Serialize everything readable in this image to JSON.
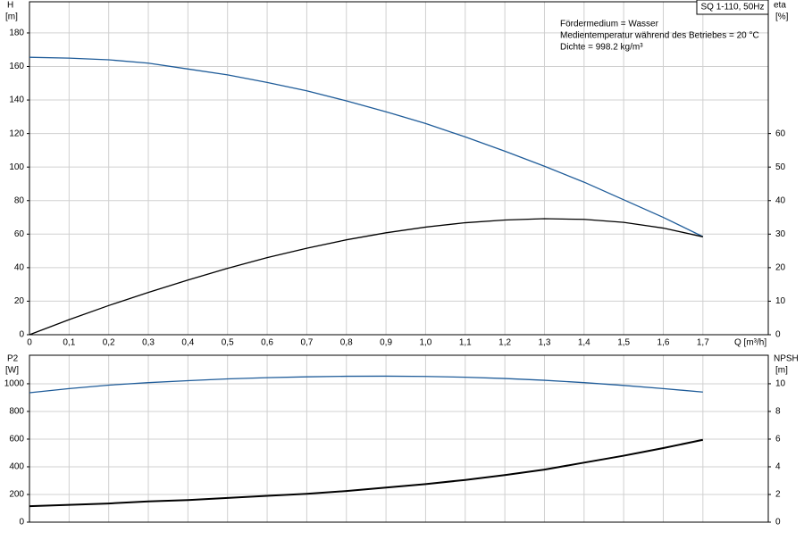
{
  "chart_data": [
    {
      "type": "line",
      "label_box": "SQ 1-110, 50Hz",
      "annotations": [
        "Fördermedium = Wasser",
        "Medientemperatur während des Betriebes = 20 °C",
        "Dichte = 998.2 kg/m³"
      ],
      "ylabel": "H",
      "yunit": "[m]",
      "y2label": "eta",
      "y2unit": "[%]",
      "xlabel": "Q [m³/h]",
      "x": [
        0,
        0.1,
        0.2,
        0.3,
        0.4,
        0.5,
        0.6,
        0.7,
        0.8,
        0.9,
        1.0,
        1.1,
        1.2,
        1.3,
        1.4,
        1.5,
        1.6,
        1.7
      ],
      "series": [
        {
          "name": "H",
          "color": "#1f5c99",
          "axis": "y",
          "values": [
            165.5,
            165,
            164,
            162,
            158.5,
            155,
            150.5,
            145.5,
            139.5,
            133,
            126,
            118,
            109.5,
            100.5,
            91,
            80.5,
            70,
            58.5
          ]
        },
        {
          "name": "eta",
          "color": "#000000",
          "axis": "y2",
          "values": [
            0,
            4.5,
            8.7,
            12.6,
            16.3,
            19.8,
            23,
            25.8,
            28.3,
            30.4,
            32.1,
            33.4,
            34.2,
            34.6,
            34.4,
            33.5,
            31.8,
            29.2
          ]
        }
      ],
      "xlim": [
        0,
        1.865
      ],
      "xticks": [
        0,
        {
          "value": 0.1,
          "label": "0,1"
        },
        {
          "value": 0.2,
          "label": "0,2"
        },
        {
          "value": 0.3,
          "label": "0,3"
        },
        {
          "value": 0.4,
          "label": "0,4"
        },
        {
          "value": 0.5,
          "label": "0,5"
        },
        {
          "value": 0.6,
          "label": "0,6"
        },
        {
          "value": 0.7,
          "label": "0,7"
        },
        {
          "value": 0.8,
          "label": "0,8"
        },
        {
          "value": 0.9,
          "label": "0,9"
        },
        {
          "value": 1.0,
          "label": "1,0"
        },
        {
          "value": 1.1,
          "label": "1,1"
        },
        {
          "value": 1.2,
          "label": "1,2"
        },
        {
          "value": 1.3,
          "label": "1,3"
        },
        {
          "value": 1.4,
          "label": "1,4"
        },
        {
          "value": 1.5,
          "label": "1,5"
        },
        {
          "value": 1.6,
          "label": "1,6"
        },
        {
          "value": 1.7,
          "label": "1,7"
        }
      ],
      "ylim": [
        0,
        198.6
      ],
      "yticks": [
        0,
        20,
        40,
        60,
        80,
        100,
        120,
        140,
        160,
        180
      ],
      "y2lim": [
        0,
        99.3
      ],
      "y2ticks": [
        0,
        10,
        20,
        30,
        40,
        50,
        60
      ],
      "grid": true
    },
    {
      "type": "line",
      "ylabel": "P2",
      "yunit": "[W]",
      "y2label": "NPSH",
      "y2unit": "[m]",
      "x": [
        0,
        0.1,
        0.2,
        0.3,
        0.4,
        0.5,
        0.6,
        0.7,
        0.8,
        0.9,
        1.0,
        1.1,
        1.2,
        1.3,
        1.4,
        1.5,
        1.6,
        1.7
      ],
      "series": [
        {
          "name": "P2",
          "color": "#1f5c99",
          "axis": "y",
          "values": [
            935,
            965,
            990,
            1008,
            1022,
            1035,
            1044,
            1050,
            1054,
            1055,
            1053,
            1047,
            1038,
            1025,
            1008,
            988,
            965,
            940
          ]
        },
        {
          "name": "NPSH",
          "color": "#000000",
          "axis": "y2",
          "width": 2,
          "values": [
            1.15,
            1.25,
            1.35,
            1.5,
            1.6,
            1.75,
            1.9,
            2.05,
            2.25,
            2.5,
            2.75,
            3.05,
            3.4,
            3.8,
            4.3,
            4.8,
            5.35,
            5.95
          ]
        }
      ],
      "xlim": [
        0,
        1.865
      ],
      "xticks": [
        0,
        0.1,
        0.2,
        0.3,
        0.4,
        0.5,
        0.6,
        0.7,
        0.8,
        0.9,
        1.0,
        1.1,
        1.2,
        1.3,
        1.4,
        1.5,
        1.6,
        1.7
      ],
      "ylim": [
        0,
        1206
      ],
      "yticks": [
        0,
        200,
        400,
        600,
        800,
        1000
      ],
      "y2lim": [
        0,
        12.06
      ],
      "y2ticks": [
        0,
        2,
        4,
        6,
        8,
        10
      ],
      "grid": true
    }
  ]
}
